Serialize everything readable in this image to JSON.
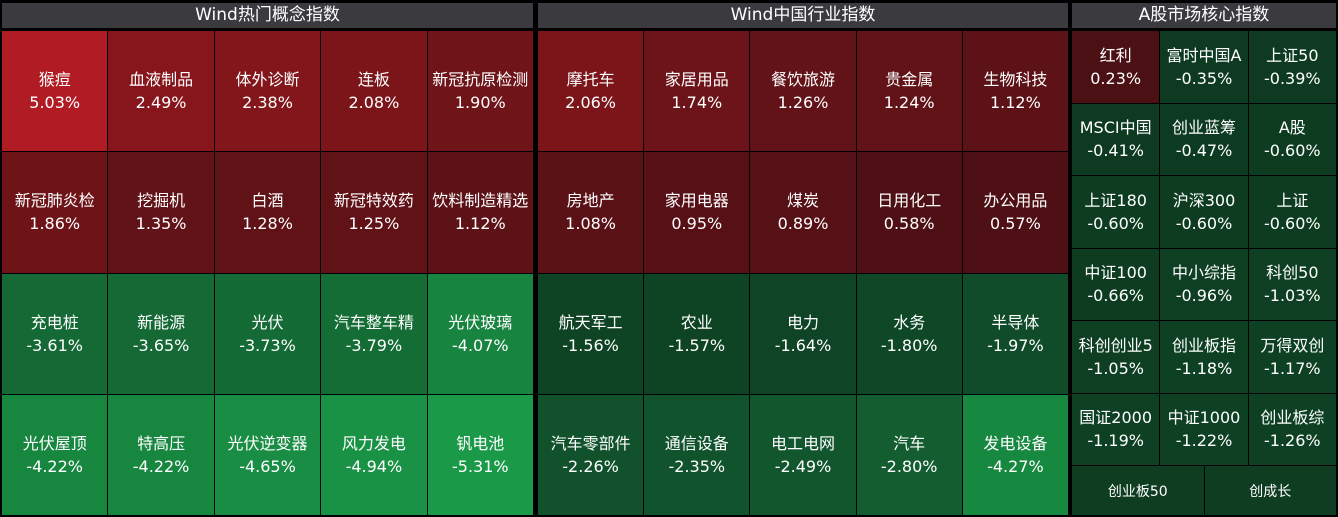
{
  "panels": [
    {
      "title": "Wind热门概念指数",
      "cells": [
        {
          "name": "猴痘",
          "pct": "5.03%",
          "color": "#b11c24"
        },
        {
          "name": "血液制品",
          "pct": "2.49%",
          "color": "#86161b"
        },
        {
          "name": "体外诊断",
          "pct": "2.38%",
          "color": "#83161b"
        },
        {
          "name": "连板",
          "pct": "2.08%",
          "color": "#7c151a"
        },
        {
          "name": "新冠抗原检测",
          "pct": "1.90%",
          "color": "#6f1419"
        },
        {
          "name": "新冠肺炎检",
          "pct": "1.86%",
          "color": "#6e1419"
        },
        {
          "name": "挖掘机",
          "pct": "1.35%",
          "color": "#621318"
        },
        {
          "name": "白酒",
          "pct": "1.28%",
          "color": "#601217"
        },
        {
          "name": "新冠特效药",
          "pct": "1.25%",
          "color": "#601217"
        },
        {
          "name": "饮料制造精选",
          "pct": "1.12%",
          "color": "#5c1217"
        },
        {
          "name": "充电桩",
          "pct": "-3.61%",
          "color": "#146934"
        },
        {
          "name": "新能源",
          "pct": "-3.65%",
          "color": "#146934"
        },
        {
          "name": "光伏",
          "pct": "-3.73%",
          "color": "#146b35"
        },
        {
          "name": "汽车整车精",
          "pct": "-3.79%",
          "color": "#156d36"
        },
        {
          "name": "光伏玻璃",
          "pct": "-4.07%",
          "color": "#17843f"
        },
        {
          "name": "光伏屋顶",
          "pct": "-4.22%",
          "color": "#178740"
        },
        {
          "name": "特高压",
          "pct": "-4.22%",
          "color": "#178740"
        },
        {
          "name": "光伏逆变器",
          "pct": "-4.65%",
          "color": "#188d43"
        },
        {
          "name": "风力发电",
          "pct": "-4.94%",
          "color": "#199245"
        },
        {
          "name": "钒电池",
          "pct": "-5.31%",
          "color": "#1a9a48"
        }
      ]
    },
    {
      "title": "Wind中国行业指数",
      "cells": [
        {
          "name": "摩托车",
          "pct": "2.06%",
          "color": "#7b151a"
        },
        {
          "name": "家居用品",
          "pct": "1.74%",
          "color": "#6c1419"
        },
        {
          "name": "餐饮旅游",
          "pct": "1.26%",
          "color": "#621318"
        },
        {
          "name": "贵金属",
          "pct": "1.24%",
          "color": "#611318"
        },
        {
          "name": "生物科技",
          "pct": "1.12%",
          "color": "#5d1217"
        },
        {
          "name": "房地产",
          "pct": "1.08%",
          "color": "#5b1217"
        },
        {
          "name": "家用电器",
          "pct": "0.95%",
          "color": "#571116"
        },
        {
          "name": "煤炭",
          "pct": "0.89%",
          "color": "#561116"
        },
        {
          "name": "日用化工",
          "pct": "0.58%",
          "color": "#4e1015"
        },
        {
          "name": "办公用品",
          "pct": "0.57%",
          "color": "#4e1015"
        },
        {
          "name": "航天军工",
          "pct": "-1.56%",
          "color": "#0e4324"
        },
        {
          "name": "农业",
          "pct": "-1.57%",
          "color": "#0e4324"
        },
        {
          "name": "电力",
          "pct": "-1.64%",
          "color": "#0f4526"
        },
        {
          "name": "水务",
          "pct": "-1.80%",
          "color": "#0f4827"
        },
        {
          "name": "半导体",
          "pct": "-1.97%",
          "color": "#104c29"
        },
        {
          "name": "汽车零部件",
          "pct": "-2.26%",
          "color": "#11522c"
        },
        {
          "name": "通信设备",
          "pct": "-2.35%",
          "color": "#11532d"
        },
        {
          "name": "电工电网",
          "pct": "-2.49%",
          "color": "#12562e"
        },
        {
          "name": "汽车",
          "pct": "-2.80%",
          "color": "#135d31"
        },
        {
          "name": "发电设备",
          "pct": "-4.27%",
          "color": "#17883f"
        }
      ]
    },
    {
      "title": "A股市场核心指数",
      "cells": [
        {
          "name": "红利",
          "pct": "0.23%",
          "color": "#4a1014"
        },
        {
          "name": "富时中国A",
          "pct": "-0.35%",
          "color": "#0d3a20"
        },
        {
          "name": "上证50",
          "pct": "-0.39%",
          "color": "#0d3a20"
        },
        {
          "name": "MSCI中国",
          "pct": "-0.41%",
          "color": "#0d3a20"
        },
        {
          "name": "创业蓝筹",
          "pct": "-0.47%",
          "color": "#0d3b21"
        },
        {
          "name": "A股",
          "pct": "-0.60%",
          "color": "#0d3c21"
        },
        {
          "name": "上证180",
          "pct": "-0.60%",
          "color": "#0d3c21"
        },
        {
          "name": "沪深300",
          "pct": "-0.60%",
          "color": "#0d3c21"
        },
        {
          "name": "上证",
          "pct": "-0.60%",
          "color": "#0d3c21"
        },
        {
          "name": "中证100",
          "pct": "-0.66%",
          "color": "#0d3c21"
        },
        {
          "name": "中小综指",
          "pct": "-0.96%",
          "color": "#0e3f23"
        },
        {
          "name": "科创50",
          "pct": "-1.03%",
          "color": "#0e3f23"
        },
        {
          "name": "科创创业5",
          "pct": "-1.05%",
          "color": "#0e3f23"
        },
        {
          "name": "创业板指",
          "pct": "-1.18%",
          "color": "#0e4023"
        },
        {
          "name": "万得双创",
          "pct": "-1.17%",
          "color": "#0e4023"
        },
        {
          "name": "国证2000",
          "pct": "-1.19%",
          "color": "#0e4023"
        },
        {
          "name": "中证1000",
          "pct": "-1.22%",
          "color": "#0e4124"
        },
        {
          "name": "创业板综",
          "pct": "-1.26%",
          "color": "#0e4124"
        }
      ],
      "bottom": [
        {
          "name": "创业板50"
        },
        {
          "name": "创成长"
        }
      ]
    }
  ]
}
